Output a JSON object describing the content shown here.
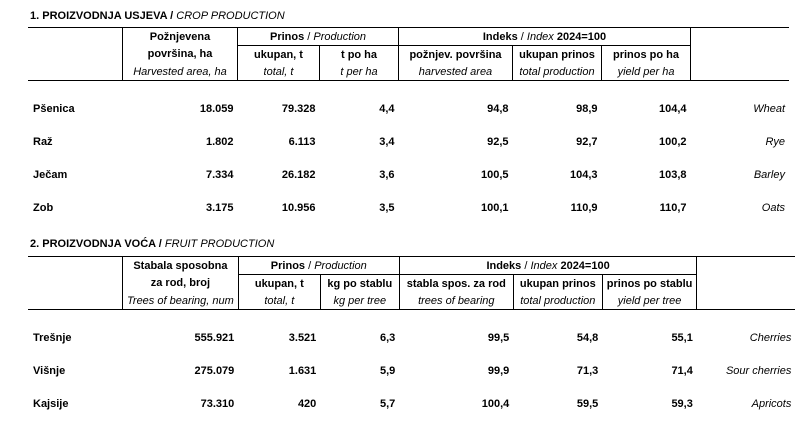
{
  "crop": {
    "title_hr": "1. PROIZVODNJA USJEVA",
    "title_en": "CROP PRODUCTION",
    "headers": {
      "area_hr1": "Požnjevena",
      "area_hr2": "površina, ha",
      "area_en": "Harvested area, ha",
      "prinos_hr": "Prinos",
      "prinos_en": "Production",
      "total_hr": "ukupan, t",
      "total_en": "total, t",
      "perha_hr": "t po ha",
      "perha_en": "t per ha",
      "index_hr": "Indeks",
      "index_en": "Index",
      "index_base": "2024=100",
      "idx_area_hr": "požnjev. površina",
      "idx_area_en": "harvested area",
      "idx_total_hr": "ukupan prinos",
      "idx_total_en": "total production",
      "idx_yield_hr": "prinos po ha",
      "idx_yield_en": "yield per ha"
    },
    "rows": [
      {
        "name": "Pšenica",
        "area": "18.059",
        "total": "79.328",
        "perha": "4,4",
        "idx_area": "94,8",
        "idx_total": "98,9",
        "idx_yield": "104,4",
        "name_en": "Wheat"
      },
      {
        "name": "Raž",
        "area": "1.802",
        "total": "6.113",
        "perha": "3,4",
        "idx_area": "92,5",
        "idx_total": "92,7",
        "idx_yield": "100,2",
        "name_en": "Rye"
      },
      {
        "name": "Ječam",
        "area": "7.334",
        "total": "26.182",
        "perha": "3,6",
        "idx_area": "100,5",
        "idx_total": "104,3",
        "idx_yield": "103,8",
        "name_en": "Barley"
      },
      {
        "name": "Zob",
        "area": "3.175",
        "total": "10.956",
        "perha": "3,5",
        "idx_area": "100,1",
        "idx_total": "110,9",
        "idx_yield": "110,7",
        "name_en": "Oats"
      }
    ]
  },
  "fruit": {
    "title_hr": "2. PROIZVODNJA VOĆA",
    "title_en": "FRUIT PRODUCTION",
    "headers": {
      "trees_hr1": "Stabala sposobna",
      "trees_hr2": "za rod, broj",
      "trees_en": "Trees of bearing, num",
      "prinos_hr": "Prinos",
      "prinos_en": "Production",
      "total_hr": "ukupan, t",
      "total_en": "total, t",
      "pertree_hr": "kg po stablu",
      "pertree_en": "kg per tree",
      "index_hr": "Indeks",
      "index_en": "Index",
      "index_base": "2024=100",
      "idx_trees_hr": "stabla spos. za rod",
      "idx_trees_en": "trees of bearing",
      "idx_total_hr": "ukupan prinos",
      "idx_total_en": "total production",
      "idx_yield_hr": "prinos po stablu",
      "idx_yield_en": "yield per tree"
    },
    "rows": [
      {
        "name": "Trešnje",
        "trees": "555.921",
        "total": "3.521",
        "pertree": "6,3",
        "idx_trees": "99,5",
        "idx_total": "54,8",
        "idx_yield": "55,1",
        "name_en": "Cherries"
      },
      {
        "name": "Višnje",
        "trees": "275.079",
        "total": "1.631",
        "pertree": "5,9",
        "idx_trees": "99,9",
        "idx_total": "71,3",
        "idx_yield": "71,4",
        "name_en": "Sour cherries"
      },
      {
        "name": "Kajsije",
        "trees": "73.310",
        "total": "420",
        "pertree": "5,7",
        "idx_trees": "100,4",
        "idx_total": "59,5",
        "idx_yield": "59,3",
        "name_en": "Apricots"
      }
    ]
  }
}
